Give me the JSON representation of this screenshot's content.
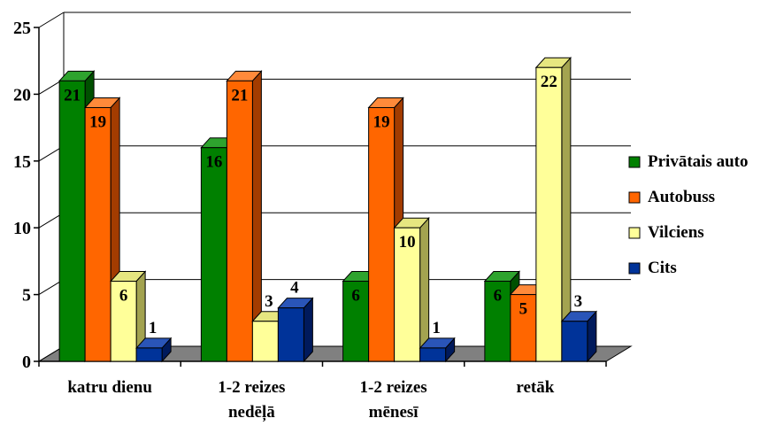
{
  "chart_data": {
    "type": "bar",
    "categories": [
      [
        "katru dienu"
      ],
      [
        "1-2 reizes",
        "nedēļā"
      ],
      [
        "1-2 reizes",
        "mēnesī"
      ],
      [
        "retāk"
      ]
    ],
    "series": [
      {
        "name": "Privātais auto",
        "values": [
          21,
          16,
          6,
          6
        ],
        "color": "#008000",
        "shade": "#005000",
        "top": "#2ea32e"
      },
      {
        "name": "Autobuss",
        "values": [
          19,
          21,
          19,
          5
        ],
        "color": "#ff6600",
        "shade": "#a33c00",
        "top": "#ff8a3a"
      },
      {
        "name": "Vilciens",
        "values": [
          6,
          3,
          10,
          22
        ],
        "color": "#ffff99",
        "shade": "#a3a350",
        "top": "#e6e680"
      },
      {
        "name": "Cits",
        "values": [
          1,
          4,
          1,
          3
        ],
        "color": "#003399",
        "shade": "#001a5c",
        "top": "#2a55b8"
      }
    ],
    "ylim": [
      0,
      25
    ],
    "yticks": [
      0,
      5,
      10,
      15,
      20,
      25
    ],
    "grid": true,
    "legend_position": "right",
    "floor_color": "#808080"
  }
}
